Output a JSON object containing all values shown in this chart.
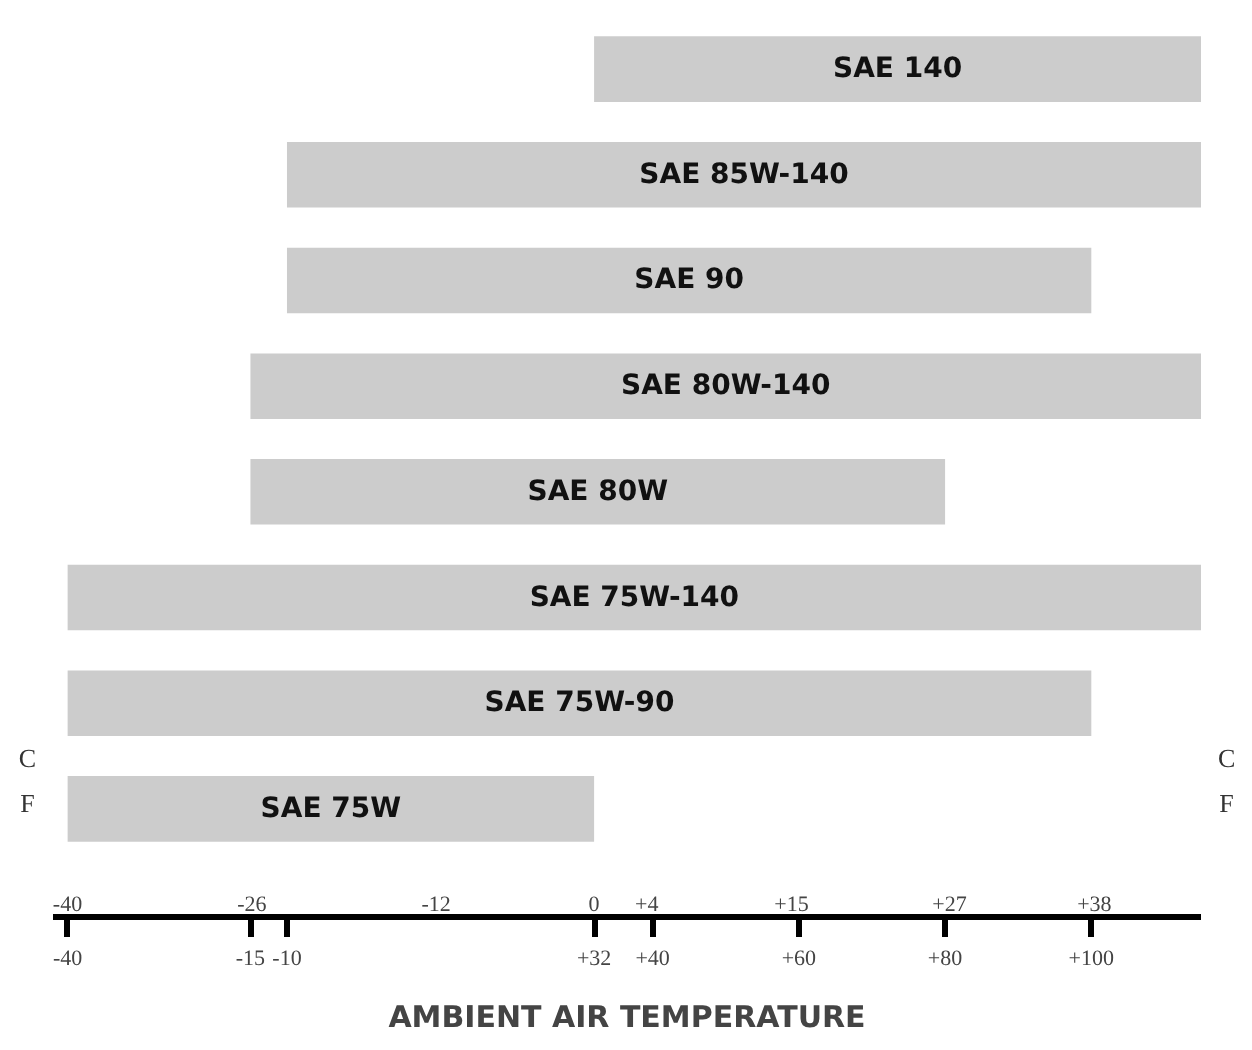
{
  "chart_data": {
    "type": "bar",
    "orientation": "horizontal",
    "categories": [
      "SAE 140",
      "SAE 85W-140",
      "SAE 90",
      "SAE 80W-140",
      "SAE 80W",
      "SAE 75W-140",
      "SAE 75W-90",
      "SAE 75W"
    ],
    "base": [
      32,
      -10,
      -10,
      -15,
      -15,
      -40,
      -40,
      -40
    ],
    "values": [
      83,
      125,
      110,
      130,
      95,
      155,
      140,
      72
    ],
    "color": "#cccccc",
    "xlim": [
      -42,
      115
    ],
    "xticks": [
      -40,
      -15,
      -10,
      {
        "value": 32,
        "label": "+32"
      },
      {
        "value": 40,
        "label": "+40"
      },
      {
        "value": 60,
        "label": "+60"
      },
      {
        "value": 80,
        "label": "+80"
      },
      {
        "value": 100,
        "label": "+100"
      }
    ],
    "x2lim": [
      -41.1,
      46.1
    ],
    "x2ticks": [
      -40,
      -26,
      -12,
      0,
      {
        "value": 4,
        "label": "+4"
      },
      {
        "value": 15,
        "label": "+15"
      },
      {
        "value": 27,
        "label": "+27"
      },
      {
        "value": 38,
        "label": "+38"
      }
    ],
    "xlabel": "AMBIENT AIR TEMPERATURE",
    "annotations": [
      "C",
      "F"
    ],
    "grid": false
  }
}
